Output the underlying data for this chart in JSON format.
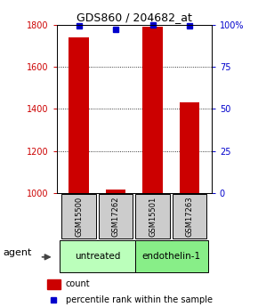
{
  "title": "GDS860 / 204682_at",
  "samples": [
    "GSM15500",
    "GSM17262",
    "GSM15501",
    "GSM17263"
  ],
  "count_values": [
    1740,
    1020,
    1790,
    1430
  ],
  "percentile_values": [
    99,
    97,
    100,
    99
  ],
  "ylim_left": [
    1000,
    1800
  ],
  "ylim_right": [
    0,
    100
  ],
  "yticks_left": [
    1000,
    1200,
    1400,
    1600,
    1800
  ],
  "yticks_right": [
    0,
    25,
    50,
    75,
    100
  ],
  "bar_color": "#cc0000",
  "percentile_color": "#0000cc",
  "bar_width": 0.55,
  "untreated_color": "#bbffbb",
  "endothelin_color": "#88ee88",
  "sample_box_color": "#cccccc",
  "legend_count_color": "#cc0000",
  "legend_pct_color": "#0000cc",
  "agent_label": "agent",
  "ylabel_left_color": "#cc0000",
  "ylabel_right_color": "#0000cc",
  "title_fontsize": 9,
  "tick_fontsize": 7,
  "sample_fontsize": 6,
  "group_fontsize": 7.5,
  "legend_fontsize": 7,
  "agent_fontsize": 8
}
